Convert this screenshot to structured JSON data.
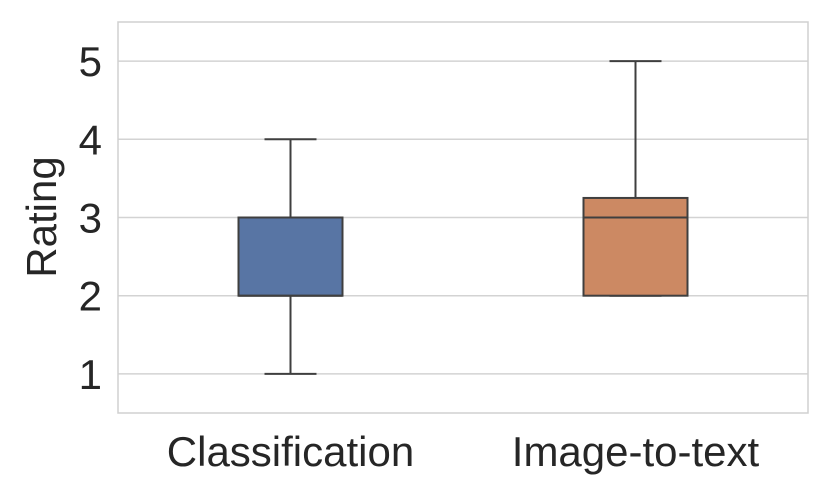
{
  "chart_data": {
    "type": "box",
    "title": "",
    "xlabel": "",
    "ylabel": "Rating",
    "ylim": [
      0.5,
      5.5
    ],
    "yticks": [
      1,
      2,
      3,
      4,
      5
    ],
    "grid": "horizontal",
    "categories": [
      "Classification",
      "Image-to-text"
    ],
    "boxes": [
      {
        "category": "Classification",
        "min": 1,
        "q1": 2,
        "median": 2,
        "q3": 3,
        "max": 4,
        "color": "#5875a4"
      },
      {
        "category": "Image-to-text",
        "min": 2,
        "q1": 2,
        "median": 3,
        "q3": 3.25,
        "max": 5,
        "color": "#cc8963"
      }
    ]
  }
}
